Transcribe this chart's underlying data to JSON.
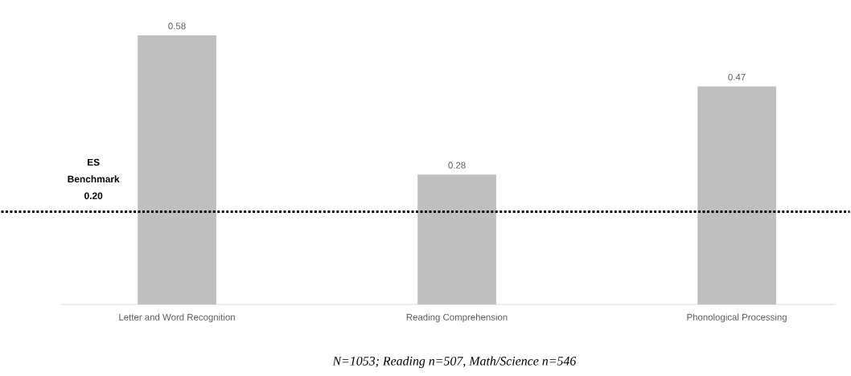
{
  "chart_data": {
    "type": "bar",
    "categories": [
      "Letter and Word Recognition",
      "Reading Comprehension",
      "Phonological Processing"
    ],
    "values": [
      0.58,
      0.28,
      0.47
    ],
    "color": "#bfbfbf",
    "data_labels": true,
    "ref_lines": [
      {
        "axis": "y",
        "value": 0.2,
        "label": "ES Benchmark 0.20",
        "color": "#000000",
        "line_style": "dotted"
      }
    ],
    "annotations": [
      "N=1053; Reading n=507, Math/Science n=546"
    ]
  }
}
